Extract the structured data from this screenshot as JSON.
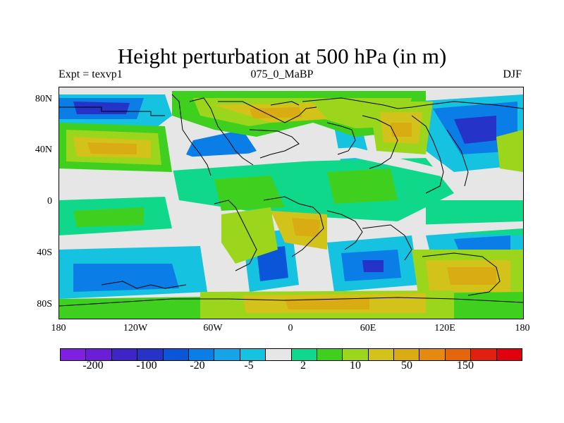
{
  "title": "Height perturbation at 500 hPa (in m)",
  "subtitle_left": "Expt = texvp1",
  "subtitle_center": "075_0_MaBP",
  "subtitle_right": "DJF",
  "y_ticks": [
    "80N",
    "40N",
    "0",
    "40S",
    "80S"
  ],
  "x_ticks": [
    "180",
    "120W",
    "60W",
    "0",
    "60E",
    "120E",
    "180"
  ],
  "colorbar": {
    "colors": [
      "#7f1fe0",
      "#6a1ed6",
      "#3f25c8",
      "#2633c8",
      "#0a55d8",
      "#0a7ee6",
      "#15a4e8",
      "#15c2df",
      "#e6e6e6",
      "#10d88b",
      "#3fd01f",
      "#9bd61c",
      "#d2c21a",
      "#d9ac13",
      "#e58a0e",
      "#e5650c",
      "#e1210d",
      "#e0000e"
    ],
    "labels": [
      "-200",
      "-100",
      "-20",
      "-5",
      "2",
      "10",
      "50",
      "150"
    ]
  }
}
